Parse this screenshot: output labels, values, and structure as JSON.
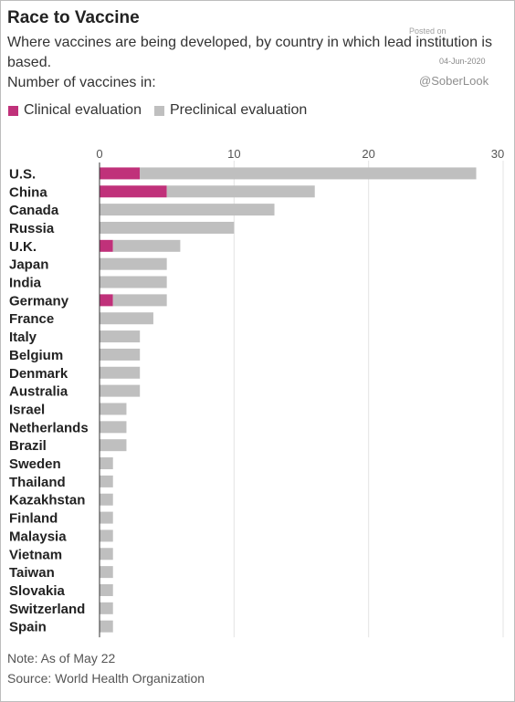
{
  "header": {
    "title": "Race to Vaccine",
    "subtitle": "Where vaccines are being developed, by country in which lead institution is based.",
    "subtitle2": "Number of vaccines in:"
  },
  "watermark": {
    "posted_label": "Posted on",
    "posted_date": "04-Jun-2020",
    "handle": "@SoberLook"
  },
  "footer": {
    "note": "Note: As of May 22",
    "source": "Source: World Health Organization"
  },
  "colors": {
    "clinical": "#c0317a",
    "preclinical": "#bfbfbf",
    "grid": "#e3e3e3",
    "axis": "#333333"
  },
  "chart_data": {
    "type": "bar",
    "orientation": "horizontal",
    "stacked": true,
    "categories": [
      "U.S.",
      "China",
      "Canada",
      "Russia",
      "U.K.",
      "Japan",
      "India",
      "Germany",
      "France",
      "Italy",
      "Belgium",
      "Denmark",
      "Australia",
      "Israel",
      "Netherlands",
      "Brazil",
      "Sweden",
      "Thailand",
      "Kazakhstan",
      "Finland",
      "Malaysia",
      "Vietnam",
      "Taiwan",
      "Slovakia",
      "Switzerland",
      "Spain"
    ],
    "series": [
      {
        "name": "Clinical evaluation",
        "values": [
          3,
          5,
          0,
          0,
          1,
          0,
          0,
          1,
          0,
          0,
          0,
          0,
          0,
          0,
          0,
          0,
          0,
          0,
          0,
          0,
          0,
          0,
          0,
          0,
          0,
          0
        ]
      },
      {
        "name": "Preclinical evaluation",
        "values": [
          25,
          11,
          13,
          10,
          5,
          5,
          5,
          4,
          4,
          3,
          3,
          3,
          3,
          2,
          2,
          2,
          1,
          1,
          1,
          1,
          1,
          1,
          1,
          1,
          1,
          1
        ]
      }
    ],
    "xlim": [
      0,
      30
    ],
    "xticks": [
      "0",
      "10",
      "20",
      "30"
    ],
    "grid": true,
    "legend_position": "top-left"
  }
}
